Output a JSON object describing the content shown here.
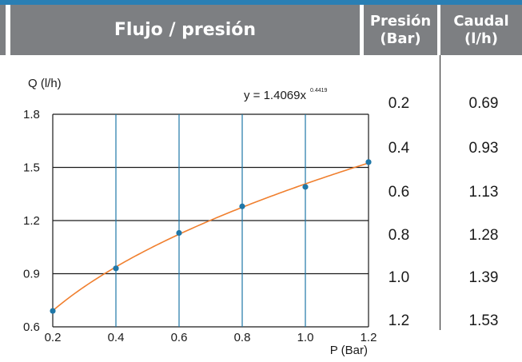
{
  "header": {
    "title": "Flujo / presión",
    "col_presion": [
      "Presión",
      "(Bar)"
    ],
    "col_caudal": [
      "Caudal",
      "(l/h)"
    ]
  },
  "table": {
    "presion": [
      "0.2",
      "0.4",
      "0.6",
      "0.8",
      "1.0",
      "1.2"
    ],
    "caudal": [
      "0.69",
      "0.93",
      "1.13",
      "1.28",
      "1.39",
      "1.53"
    ]
  },
  "chart_data": {
    "type": "scatter",
    "ylabel": "Q (l/h)",
    "xlabel": "P (Bar)",
    "x_ticks": [
      "0.2",
      "0.4",
      "0.6",
      "0.8",
      "1.0",
      "1.2"
    ],
    "y_ticks": [
      "0.6",
      "0.9",
      "1.2",
      "1.5",
      "1.8"
    ],
    "xlim": [
      0.2,
      1.2
    ],
    "ylim": [
      0.6,
      1.8
    ],
    "points": [
      {
        "x": 0.2,
        "y": 0.69
      },
      {
        "x": 0.4,
        "y": 0.93
      },
      {
        "x": 0.6,
        "y": 1.13
      },
      {
        "x": 0.8,
        "y": 1.28
      },
      {
        "x": 1.0,
        "y": 1.39
      },
      {
        "x": 1.2,
        "y": 1.53
      }
    ],
    "trendline": {
      "type": "power",
      "a": 1.4069,
      "b": 0.4419,
      "equation_base": "y = 1.4069x",
      "equation_exp": "0.4419"
    },
    "colors": {
      "points": "#1f77a8",
      "trendline": "#f07f2e",
      "grid": "#1a1a1a",
      "vgrid": "#1f77a8"
    },
    "grid": true
  }
}
